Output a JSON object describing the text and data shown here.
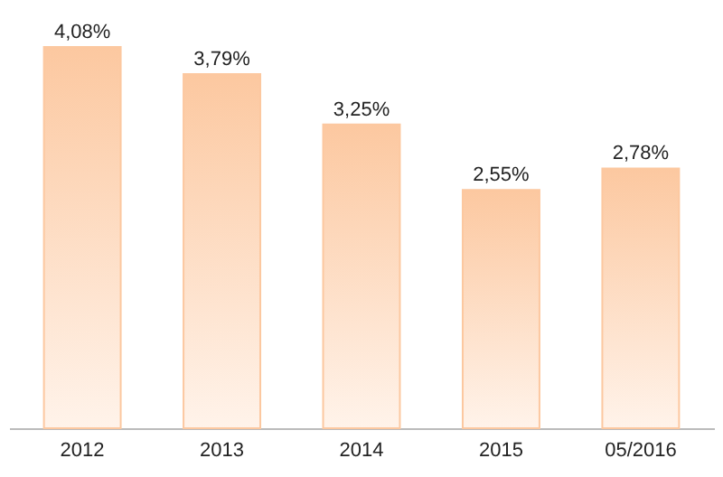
{
  "chart_data": {
    "type": "bar",
    "categories": [
      "2012",
      "2013",
      "2014",
      "2015",
      "05/2016"
    ],
    "values": [
      4.08,
      3.79,
      3.25,
      2.55,
      2.78
    ],
    "value_labels": [
      "4,08%",
      "3,79%",
      "3,25%",
      "2,55%",
      "2,78%"
    ],
    "color": "#fcc8a0",
    "grid": false
  }
}
